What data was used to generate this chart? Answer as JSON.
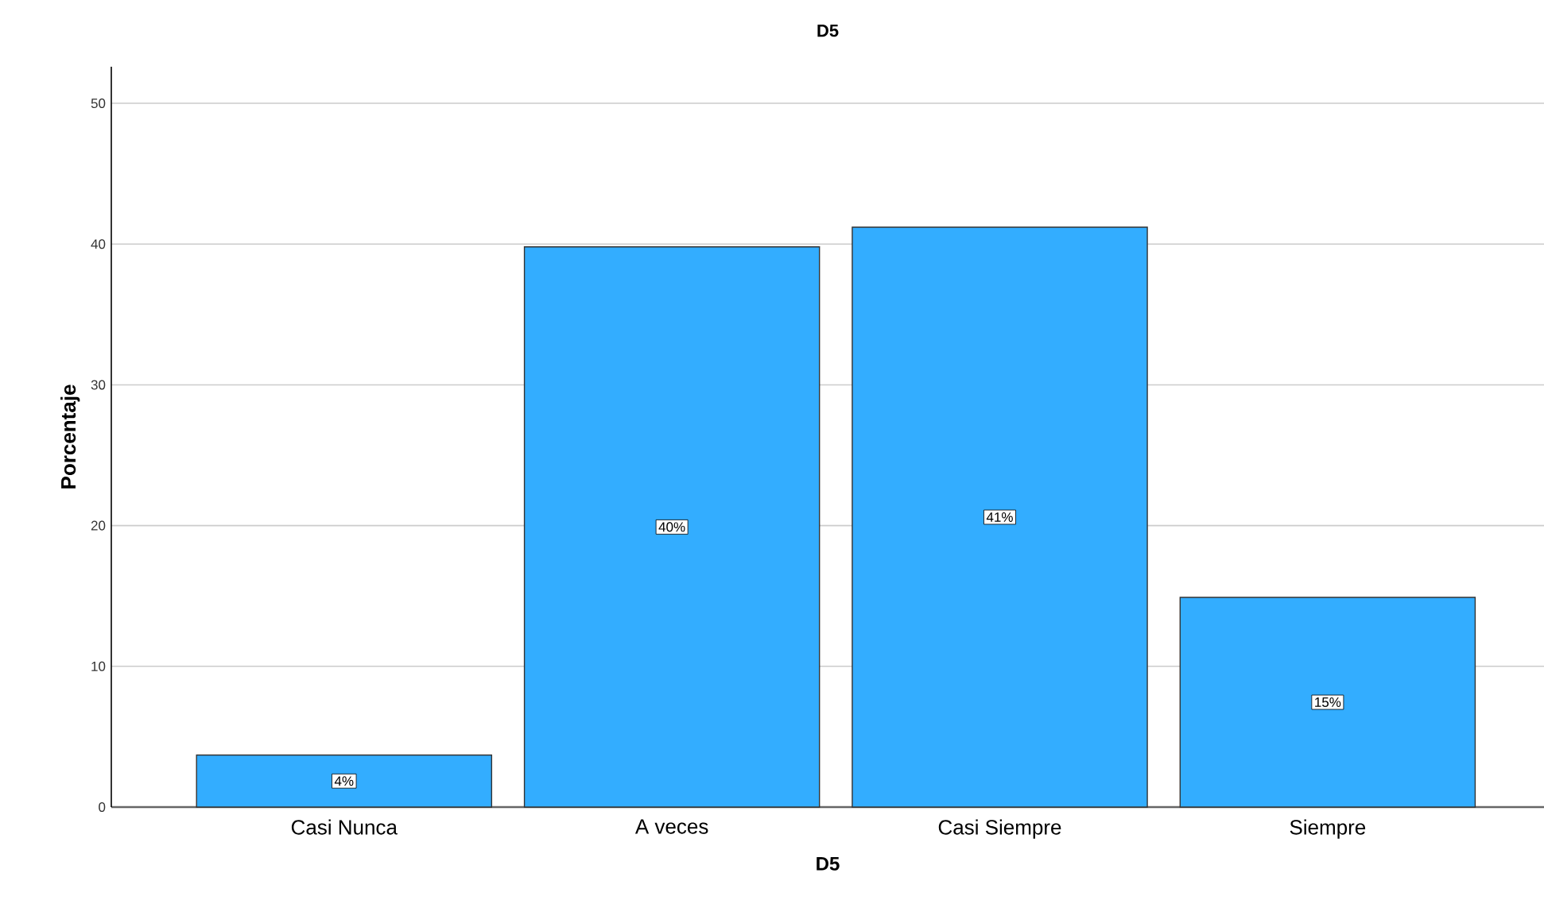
{
  "chart_data": {
    "type": "bar",
    "title": "D5",
    "xlabel": "D5",
    "ylabel": "Porcentaje",
    "categories": [
      "Casi Nunca",
      "A veces",
      "Casi Siempre",
      "Siempre"
    ],
    "values": [
      3.7,
      39.8,
      41.2,
      14.9
    ],
    "value_labels": [
      "4%",
      "40%",
      "41%",
      "15%"
    ],
    "color": "#33adff",
    "ylim": [
      0,
      52.6
    ],
    "yticks": [
      0,
      10,
      20,
      30,
      40,
      50
    ],
    "grid": "y"
  }
}
